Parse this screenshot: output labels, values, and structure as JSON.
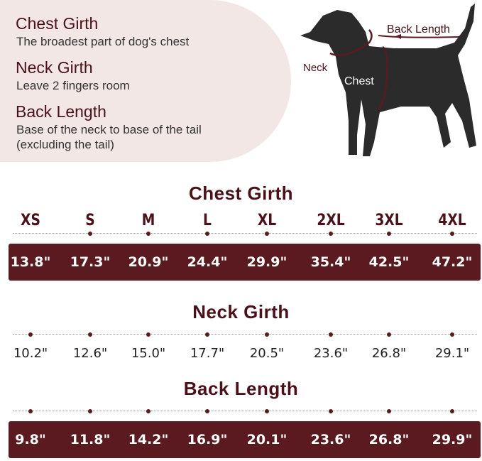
{
  "legend": [
    {
      "heading": "Chest Girth",
      "desc": [
        "The broadest part of dog's chest"
      ]
    },
    {
      "heading": "Neck Girth",
      "desc": [
        "Leave 2 fingers room"
      ]
    },
    {
      "heading": "Back Length",
      "desc": [
        "Base of the neck to base of the tail",
        "(excluding the tail)"
      ]
    }
  ],
  "diagram": {
    "back": "Back Length",
    "neck": "Neck",
    "chest": "Chest"
  },
  "sizes": [
    "XS",
    "S",
    "M",
    "L",
    "XL",
    "2XL",
    "3XL",
    "4XL"
  ],
  "chest": {
    "title": "Chest Girth",
    "values": [
      "13.8\"",
      "17.3\"",
      "20.9\"",
      "24.4\"",
      "29.9\"",
      "35.4\"",
      "42.5\"",
      "47.2\""
    ]
  },
  "neck": {
    "title": "Neck Girth",
    "values": [
      "10.2\"",
      "12.6\"",
      "15.0\"",
      "17.7\"",
      "20.5\"",
      "23.6\"",
      "26.8\"",
      "29.1\""
    ]
  },
  "back": {
    "title": "Back Length",
    "values": [
      "9.8\"",
      "11.8\"",
      "14.2\"",
      "16.9\"",
      "20.1\"",
      "23.6\"",
      "26.8\"",
      "29.9\""
    ]
  },
  "colors": {
    "accent": "#5a1a1f",
    "panel": "#f3e7e6",
    "dog": "#2b2b2b"
  }
}
